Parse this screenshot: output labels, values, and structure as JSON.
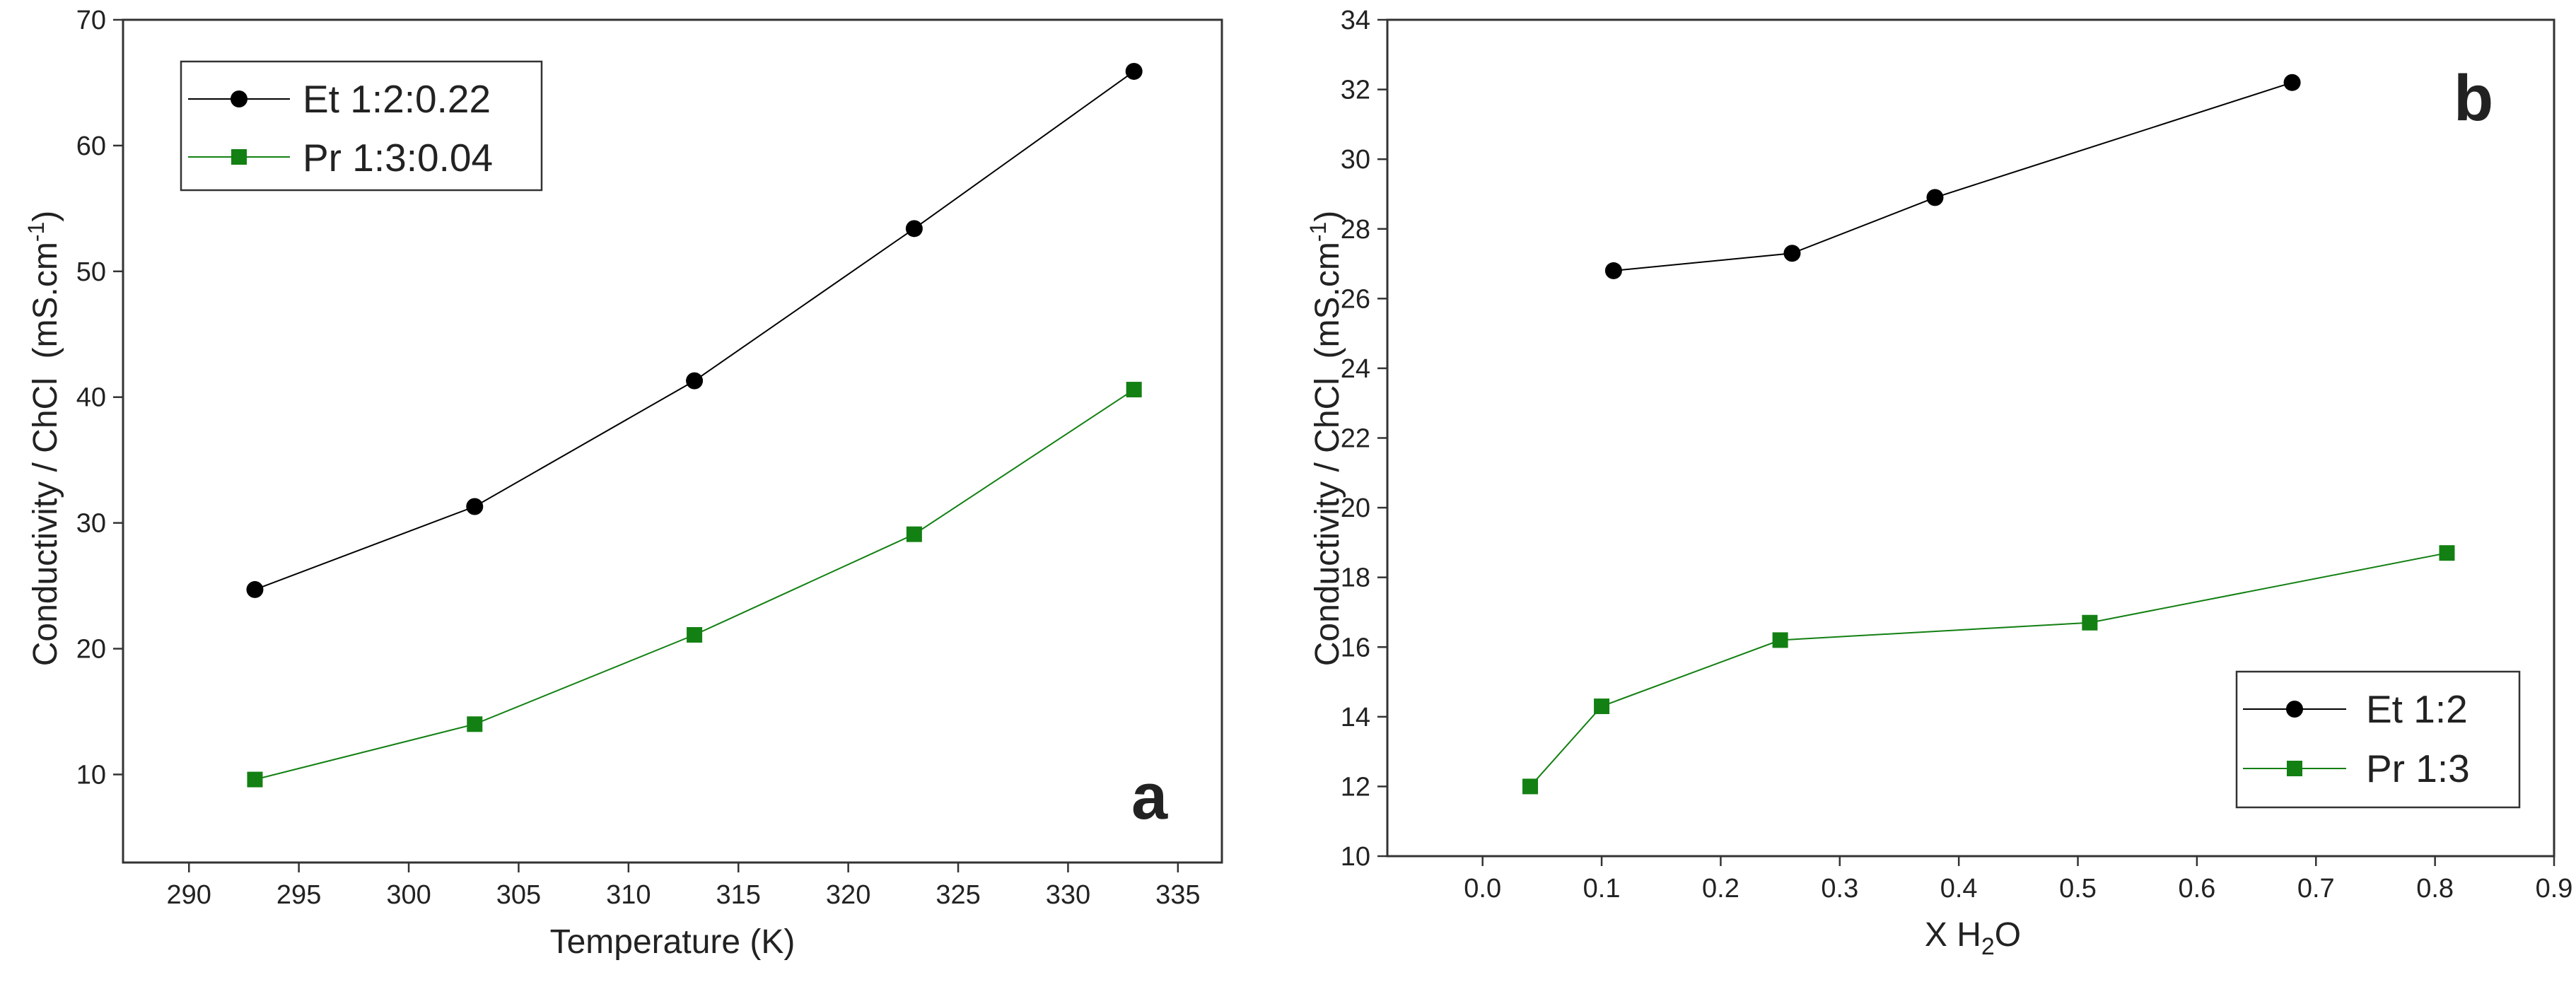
{
  "chart_data": [
    {
      "panel": "a",
      "type": "line",
      "xlabel": "Temperature (K)",
      "ylabel_main": "Conductivity / ChCl",
      "ylabel_units": "(mS.cm",
      "ylabel_sup": "-1",
      "ylabel_close": ")",
      "xlim": [
        287,
        337
      ],
      "ylim": [
        3,
        70
      ],
      "xticks": [
        290,
        295,
        300,
        305,
        310,
        315,
        320,
        325,
        330,
        335
      ],
      "yticks": [
        10,
        20,
        30,
        40,
        50,
        60,
        70
      ],
      "legend_position": "top-left",
      "series": [
        {
          "name": "Et 1:2:0.22",
          "color": "#000000",
          "marker": "circle",
          "x": [
            293,
            303,
            313,
            323,
            333
          ],
          "y": [
            24.7,
            31.3,
            41.3,
            53.4,
            65.9
          ]
        },
        {
          "name": "Pr 1:3:0.04",
          "color": "#138013",
          "marker": "square",
          "x": [
            293,
            303,
            313,
            323,
            333
          ],
          "y": [
            9.6,
            14.0,
            21.1,
            29.1,
            40.6
          ]
        }
      ]
    },
    {
      "panel": "b",
      "type": "line",
      "xlabel_pre": "X H",
      "xlabel_sub": "2",
      "xlabel_post": "O",
      "ylabel_main": "Conductivity / ChCl",
      "ylabel_units": "(mS.cm",
      "ylabel_sup": "-1",
      "ylabel_close": ")",
      "xlim": [
        -0.08,
        0.9
      ],
      "ylim": [
        10,
        34
      ],
      "xticks": [
        "0.0",
        "0.1",
        "0.2",
        "0.3",
        "0.4",
        "0.5",
        "0.6",
        "0.7",
        "0.8",
        "0.9"
      ],
      "yticks": [
        10,
        12,
        14,
        16,
        18,
        20,
        22,
        24,
        26,
        28,
        30,
        32,
        34
      ],
      "legend_position": "bottom-right",
      "series": [
        {
          "name": "Et 1:2",
          "color": "#000000",
          "marker": "circle",
          "x": [
            0.11,
            0.26,
            0.38,
            0.68
          ],
          "y": [
            26.8,
            27.3,
            28.9,
            32.2
          ]
        },
        {
          "name": "Pr 1:3",
          "color": "#138013",
          "marker": "square",
          "x": [
            0.04,
            0.1,
            0.25,
            0.51,
            0.81
          ],
          "y": [
            12.0,
            14.3,
            16.2,
            16.7,
            18.7
          ]
        }
      ]
    }
  ]
}
